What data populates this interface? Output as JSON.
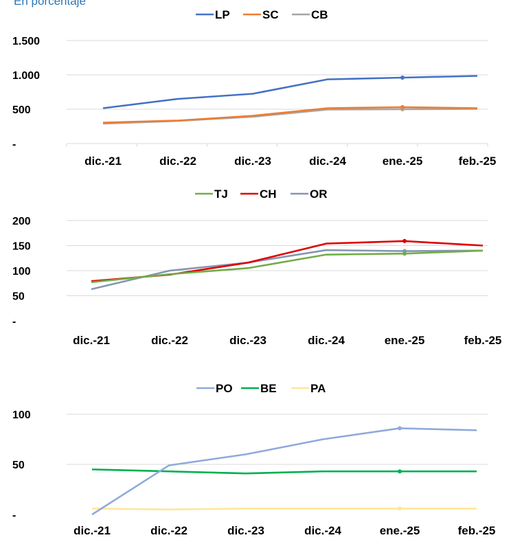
{
  "subtitle": "En porcentaje",
  "chart_data": [
    {
      "type": "line",
      "categories": [
        "dic.-21",
        "dic.-22",
        "dic.-23",
        "dic.-24",
        "ene.-25",
        "feb.-25"
      ],
      "yticks": [
        "-",
        "500",
        "1.000",
        "1.500"
      ],
      "ylim": [
        0,
        1500
      ],
      "legend_position": "top-center",
      "grid": true,
      "series": [
        {
          "name": "LP",
          "color": "#4472c4",
          "values": [
            515,
            650,
            725,
            935,
            960,
            985
          ]
        },
        {
          "name": "SC",
          "color": "#ed7d31",
          "values": [
            305,
            335,
            405,
            515,
            530,
            515
          ]
        },
        {
          "name": "CB",
          "color": "#a5a5a5",
          "values": [
            290,
            330,
            390,
            495,
            500,
            505
          ]
        }
      ]
    },
    {
      "type": "line",
      "categories": [
        "dic.-21",
        "dic.-22",
        "dic.-23",
        "dic.-24",
        "ene.-25",
        "feb.-25"
      ],
      "yticks": [
        "-",
        "50",
        "100",
        "150",
        "200"
      ],
      "ylim": [
        0,
        200
      ],
      "legend_position": "top-center",
      "grid": true,
      "series": [
        {
          "name": "TJ",
          "color": "#70ad47",
          "values": [
            77,
            93,
            105,
            132,
            134,
            140
          ]
        },
        {
          "name": "CH",
          "color": "#e00000",
          "values": [
            79,
            92,
            116,
            154,
            159,
            150
          ]
        },
        {
          "name": "OR",
          "color": "#8496b0",
          "values": [
            63,
            100,
            116,
            141,
            139,
            140
          ]
        }
      ]
    },
    {
      "type": "line",
      "categories": [
        "dic.-21",
        "dic.-22",
        "dic.-23",
        "dic.-24",
        "ene.-25",
        "feb.-25"
      ],
      "yticks": [
        "-",
        "50",
        "100"
      ],
      "ylim": [
        0,
        100
      ],
      "legend_position": "top-center",
      "grid": true,
      "series": [
        {
          "name": "PO",
          "color": "#8faadc",
          "values": [
            0,
            49,
            60,
            75,
            86,
            84
          ]
        },
        {
          "name": "BE",
          "color": "#00b050",
          "values": [
            45,
            43,
            41,
            43,
            43,
            43
          ]
        },
        {
          "name": "PA",
          "color": "#ffe699",
          "values": [
            6,
            5,
            6,
            6,
            6,
            6
          ]
        }
      ]
    }
  ]
}
